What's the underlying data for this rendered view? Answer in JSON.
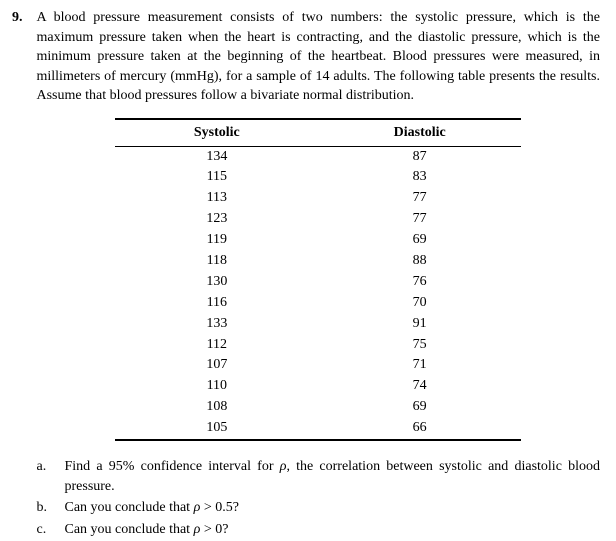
{
  "problem_number": "9.",
  "problem_text": "A blood pressure measurement consists of two numbers: the systolic pressure, which is the maximum pressure taken when the heart is contracting, and the diastolic pressure, which is the minimum pressure taken at the beginning of the heartbeat. Blood pressures were measured, in millimeters of mercury (mmHg), for a sample of 14 adults. The following table presents the results. Assume that blood pressures follow a bivariate normal distribution.",
  "table": {
    "columns": [
      "Systolic",
      "Diastolic"
    ],
    "rows": [
      [
        134,
        87
      ],
      [
        115,
        83
      ],
      [
        113,
        77
      ],
      [
        123,
        77
      ],
      [
        119,
        69
      ],
      [
        118,
        88
      ],
      [
        130,
        76
      ],
      [
        116,
        70
      ],
      [
        133,
        91
      ],
      [
        112,
        75
      ],
      [
        107,
        71
      ],
      [
        110,
        74
      ],
      [
        108,
        69
      ],
      [
        105,
        66
      ]
    ]
  },
  "subparts": {
    "a": {
      "label": "a.",
      "text": "Find a 95% confidence interval for ρ, the correlation between systolic and diastolic blood pressure."
    },
    "b": {
      "label": "b.",
      "text": "Can you conclude that ρ > 0.5?"
    },
    "c": {
      "label": "c.",
      "text": "Can you conclude that ρ > 0?"
    }
  }
}
